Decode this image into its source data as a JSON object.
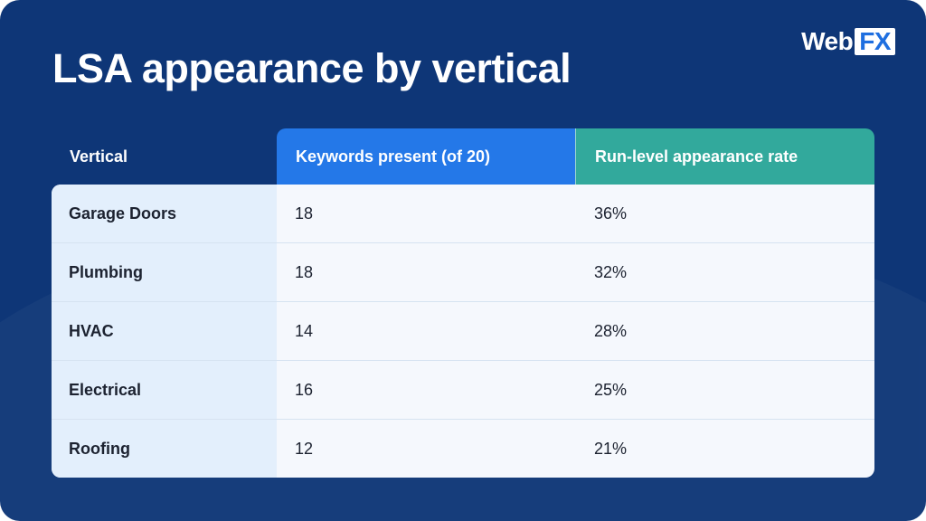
{
  "title": "LSA appearance by vertical",
  "logo": {
    "web": "Web",
    "fx": "FX"
  },
  "colors": {
    "background": "#0e3677",
    "header_keywords": "#2478e8",
    "header_rate": "#32a99c",
    "vertical_column": "#e3effc",
    "table_body": "#f5f8fd"
  },
  "chart_data": {
    "type": "table",
    "title": "LSA appearance by vertical",
    "columns": [
      "Vertical",
      "Keywords present (of 20)",
      "Run-level appearance rate"
    ],
    "rows": [
      {
        "vertical": "Garage Doors",
        "keywords": "18",
        "rate": "36%"
      },
      {
        "vertical": "Plumbing",
        "keywords": "18",
        "rate": "32%"
      },
      {
        "vertical": "HVAC",
        "keywords": "14",
        "rate": "28%"
      },
      {
        "vertical": "Electrical",
        "keywords": "16",
        "rate": "25%"
      },
      {
        "vertical": "Roofing",
        "keywords": "12",
        "rate": "21%"
      }
    ]
  }
}
